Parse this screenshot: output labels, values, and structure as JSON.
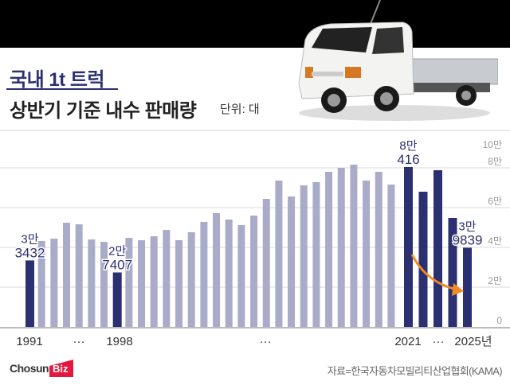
{
  "header": {
    "title_line1": "국내 1t 트럭",
    "title_line2": "상반기 기준 내수 판매량",
    "unit": "단위: 대",
    "title_color": "#2b3174"
  },
  "footer": {
    "logo_text_1": "Chosun",
    "logo_text_2": "Biz",
    "logo_accent": "#e4173e",
    "source": "자료=한국자동차모빌리티산업협회(KAMA)"
  },
  "colors": {
    "highlight_bar": "#2b3070",
    "normal_bar": "#a9abc8",
    "arrow": "#f28a24",
    "grid": "#d9d9d9"
  },
  "chart_data": {
    "type": "bar",
    "title": "국내 1t 트럭 상반기 기준 내수 판매량",
    "subtitle": "단위: 대",
    "xlabel": "",
    "ylabel": "",
    "ylim": [
      0,
      100000
    ],
    "y_ticks": [
      "0",
      "2만",
      "4만",
      "6만",
      "8만",
      "10만"
    ],
    "y_tick_values": [
      0,
      20000,
      40000,
      60000,
      80000,
      100000
    ],
    "grid": true,
    "x_tick_labels": [
      "1991",
      "···",
      "1998",
      "···",
      "2021",
      "···",
      "2025년"
    ],
    "categories": [
      "1991",
      "1992",
      "1993",
      "1994",
      "1995",
      "1996",
      "1997",
      "1998",
      "1999",
      "2000",
      "2001",
      "2002",
      "2003",
      "2004",
      "2005",
      "2006",
      "2007",
      "2008",
      "2009",
      "2010",
      "2011",
      "2012",
      "2013",
      "2014",
      "2015",
      "2016",
      "2017",
      "2018",
      "2019",
      "2020",
      "2021",
      "2022",
      "2023",
      "2024",
      "2025"
    ],
    "values": [
      33432,
      43200,
      44400,
      52400,
      51600,
      44000,
      42800,
      27407,
      44800,
      43600,
      45600,
      48800,
      43600,
      47600,
      52800,
      57200,
      54000,
      51200,
      56000,
      64400,
      73600,
      65600,
      71200,
      72800,
      78000,
      80000,
      81600,
      73600,
      78000,
      71600,
      80416,
      68000,
      78800,
      54800,
      39839
    ],
    "highlighted": [
      "1991",
      "1998",
      "2021",
      "2022",
      "2023",
      "2024",
      "2025"
    ],
    "annotations": [
      {
        "year": "1991",
        "line1": "3만",
        "line2": "3432"
      },
      {
        "year": "1998",
        "line1": "2만",
        "line2": "7407"
      },
      {
        "year": "2021",
        "line1": "8만",
        "line2": "416"
      },
      {
        "year": "2025",
        "line1": "3만",
        "line2": "9839"
      }
    ],
    "arrow": {
      "from": "2021",
      "to": "2025",
      "meaning": "decline"
    }
  }
}
